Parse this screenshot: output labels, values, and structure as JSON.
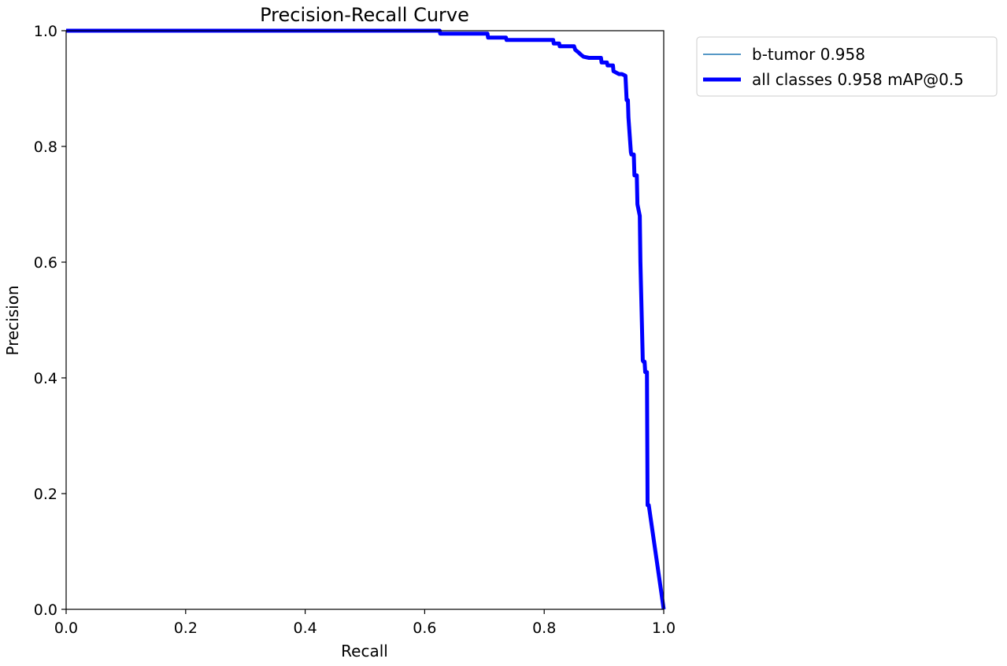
{
  "chart_data": {
    "type": "line",
    "title": "Precision-Recall Curve",
    "xlabel": "Recall",
    "ylabel": "Precision",
    "xlim": [
      0,
      1
    ],
    "ylim": [
      0,
      1
    ],
    "grid": false,
    "legend_placement": "outside-top-right",
    "x_ticks": [
      "0.0",
      "0.2",
      "0.4",
      "0.6",
      "0.8",
      "1.0"
    ],
    "y_ticks": [
      "0.0",
      "0.2",
      "0.4",
      "0.6",
      "0.8",
      "1.0"
    ],
    "series": [
      {
        "name": "b-tumor 0.958",
        "color": "#1f77b4",
        "style": "thin",
        "x": [
          0.0,
          0.625,
          0.626,
          0.705,
          0.706,
          0.736,
          0.737,
          0.815,
          0.816,
          0.825,
          0.826,
          0.85,
          0.852,
          0.858,
          0.862,
          0.866,
          0.875,
          0.885,
          0.895,
          0.896,
          0.905,
          0.906,
          0.915,
          0.916,
          0.925,
          0.93,
          0.936,
          0.937,
          0.938,
          0.94,
          0.941,
          0.945,
          0.946,
          0.95,
          0.951,
          0.955,
          0.956,
          0.96,
          0.961,
          0.965,
          0.966,
          0.968,
          0.969,
          0.972,
          0.973,
          0.975,
          1.0
        ],
        "y": [
          1.0,
          1.0,
          0.995,
          0.995,
          0.988,
          0.988,
          0.984,
          0.984,
          0.978,
          0.978,
          0.973,
          0.973,
          0.967,
          0.962,
          0.958,
          0.955,
          0.953,
          0.953,
          0.953,
          0.945,
          0.945,
          0.94,
          0.94,
          0.93,
          0.925,
          0.925,
          0.922,
          0.9,
          0.88,
          0.88,
          0.85,
          0.79,
          0.786,
          0.786,
          0.75,
          0.75,
          0.7,
          0.68,
          0.6,
          0.43,
          0.428,
          0.428,
          0.41,
          0.41,
          0.18,
          0.18,
          0.0
        ]
      },
      {
        "name": "all classes 0.958 mAP@0.5",
        "color": "#0000ff",
        "style": "thick",
        "x": [
          0.0,
          0.625,
          0.626,
          0.705,
          0.706,
          0.736,
          0.737,
          0.815,
          0.816,
          0.825,
          0.826,
          0.85,
          0.852,
          0.858,
          0.862,
          0.866,
          0.875,
          0.885,
          0.895,
          0.896,
          0.905,
          0.906,
          0.915,
          0.916,
          0.925,
          0.93,
          0.936,
          0.937,
          0.938,
          0.94,
          0.941,
          0.945,
          0.946,
          0.95,
          0.951,
          0.955,
          0.956,
          0.96,
          0.961,
          0.965,
          0.966,
          0.968,
          0.969,
          0.972,
          0.973,
          0.975,
          1.0
        ],
        "y": [
          1.0,
          1.0,
          0.995,
          0.995,
          0.988,
          0.988,
          0.984,
          0.984,
          0.978,
          0.978,
          0.973,
          0.973,
          0.967,
          0.962,
          0.958,
          0.955,
          0.953,
          0.953,
          0.953,
          0.945,
          0.945,
          0.94,
          0.94,
          0.93,
          0.925,
          0.925,
          0.922,
          0.9,
          0.88,
          0.88,
          0.85,
          0.79,
          0.786,
          0.786,
          0.75,
          0.75,
          0.7,
          0.68,
          0.6,
          0.43,
          0.428,
          0.428,
          0.41,
          0.41,
          0.18,
          0.18,
          0.0
        ]
      }
    ]
  }
}
